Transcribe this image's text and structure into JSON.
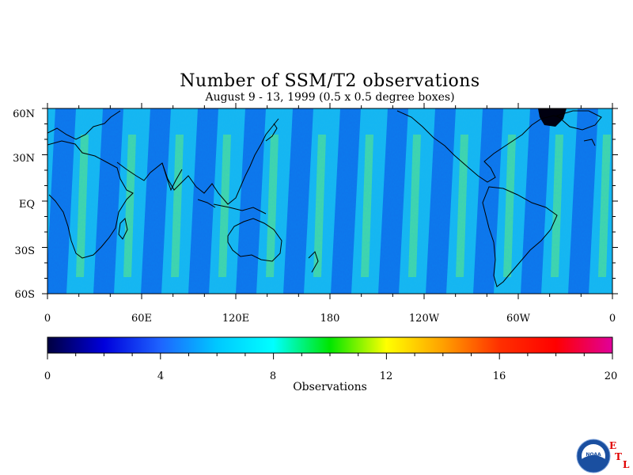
{
  "title": "Number of SSM/T2 observations",
  "subtitle": "August 9 - 13, 1999 (0.5 x 0.5 degree boxes)",
  "map": {
    "lat_labels": [
      "60N",
      "30N",
      "EQ",
      "30S",
      "60S"
    ],
    "lon_labels": [
      "0",
      "60E",
      "120E",
      "180",
      "120W",
      "60W",
      "0"
    ]
  },
  "colorbar": {
    "title": "Observations",
    "tick_labels": [
      "0",
      "4",
      "8",
      "12",
      "16",
      "20"
    ],
    "range": [
      0,
      20
    ],
    "stops": [
      "#000040",
      "#0000dc",
      "#1e64ff",
      "#00c8ff",
      "#00ffff",
      "#00e600",
      "#ffff00",
      "#ffa000",
      "#ff3000",
      "#ff0000",
      "#e0009a"
    ]
  },
  "logo": {
    "text": "NOAA",
    "letters": [
      "E",
      "T",
      "L"
    ]
  }
}
